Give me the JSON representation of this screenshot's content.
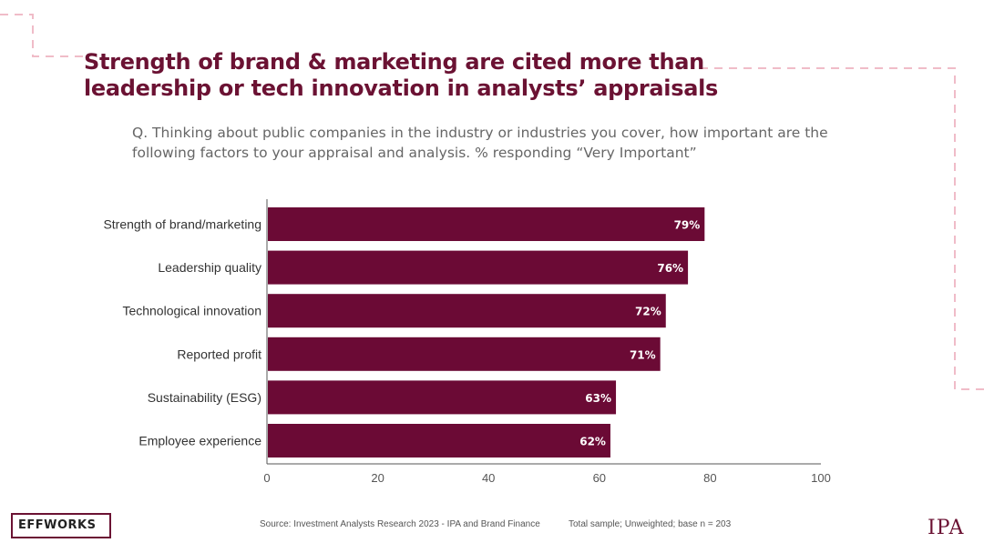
{
  "title": "Strength of brand & marketing are cited more than leadership or tech innovation in analysts’ appraisals",
  "question": "Q. Thinking about public companies in the industry or industries you cover, how important are the following factors to your appraisal and analysis. % responding “Very Important”",
  "footer": {
    "source": "Source: Investment Analysts Research 2023  - IPA and Brand Finance",
    "sample": "Total sample; Unweighted; base n = 203"
  },
  "logos": {
    "left": "EFFWORKS",
    "right": "IPA"
  },
  "colors": {
    "bar": "#6b0a35",
    "title": "#6b1233",
    "dash": "#f0bcc8"
  },
  "chart_data": {
    "type": "bar",
    "orientation": "horizontal",
    "categories": [
      "Strength of brand/marketing",
      "Leadership quality",
      "Technological innovation",
      "Reported profit",
      "Sustainability (ESG)",
      "Employee experience"
    ],
    "values": [
      79,
      76,
      72,
      71,
      63,
      62
    ],
    "value_labels": [
      "79%",
      "76%",
      "72%",
      "71%",
      "63%",
      "62%"
    ],
    "xlim": [
      0,
      100
    ],
    "xticks": [
      0,
      20,
      40,
      60,
      80,
      100
    ],
    "grid": false
  }
}
